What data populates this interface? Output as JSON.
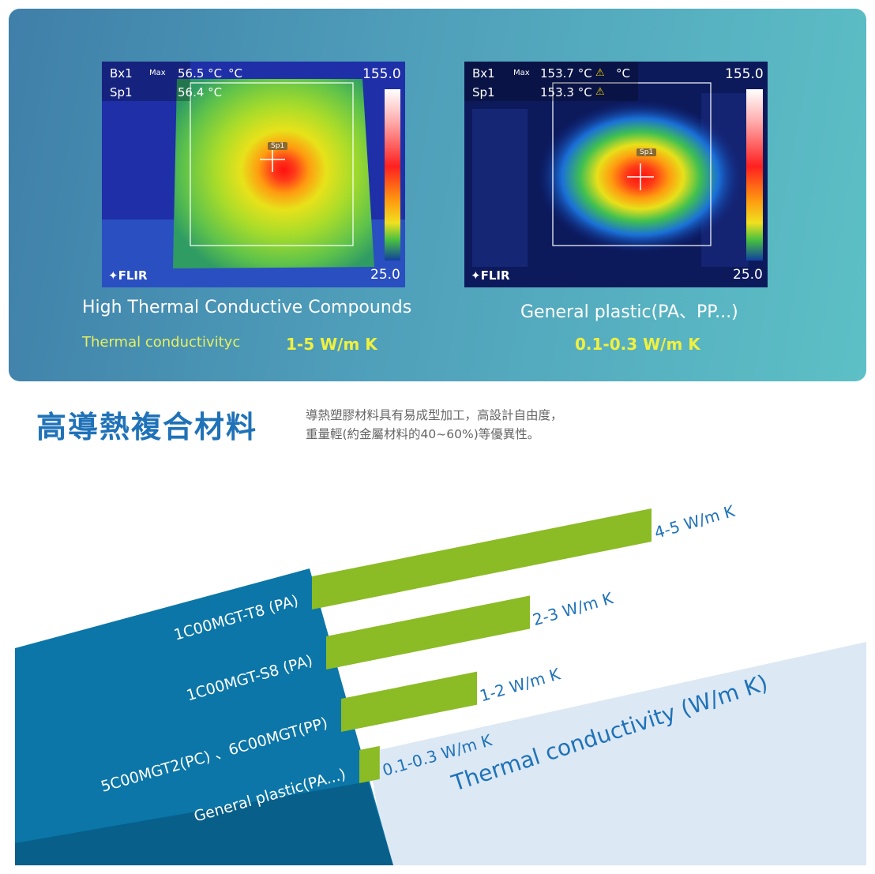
{
  "top": {
    "left_image": {
      "bx": "Bx1",
      "sp": "Sp1",
      "max_label": "Max",
      "max_value": "56.5 °C",
      "unit": "°C",
      "sp_value": "56.4 °C",
      "scale_max": "155.0",
      "scale_min": "25.0",
      "sp_marker": "Sp1",
      "brand": "FLIR"
    },
    "right_image": {
      "bx": "Bx1",
      "sp": "Sp1",
      "max_label": "Max",
      "max_value": "153.7 °C",
      "unit": "°C",
      "sp_value": "153.3 °C",
      "scale_max": "155.0",
      "scale_min": "25.0",
      "sp_marker": "Sp1",
      "brand": "FLIR"
    },
    "left_title": "High Thermal Conductive  Compounds",
    "left_label": "Thermal conductivityc",
    "left_value": "1-5 W/m K",
    "right_title": "General plastic(PA、PP...)",
    "right_value": "0.1-0.3 W/m K"
  },
  "heading": {
    "title": "高導熱複合材料",
    "desc_line1": "導熱塑膠材料具有易成型加工，高設計自由度，",
    "desc_line2": "重量輕(約金屬材料的40~60%)等優異性。"
  },
  "chart_data": {
    "type": "bar",
    "orientation": "horizontal",
    "categories": [
      "1C00MGT-T8 (PA)",
      "1C00MGT-S8 (PA)",
      "5C00MGT2(PC) 、6C00MGT(PP)",
      "General plastic(PA...)"
    ],
    "ranges": [
      [
        4,
        5
      ],
      [
        2,
        3
      ],
      [
        1,
        2
      ],
      [
        0.1,
        0.3
      ]
    ],
    "value_labels": [
      "4-5 W/m K",
      "2-3 W/m K",
      "1-2 W/m K",
      "0.1-0.3 W/m K"
    ],
    "axis_title": "Thermal conductivity (W/m K)",
    "colors": {
      "bar": "#8bbb25",
      "label_panel": "#0b76a7",
      "label_panel_dark": "#075f8a",
      "axis_bg": "#dce8f4",
      "text": "#1f72b8"
    }
  }
}
